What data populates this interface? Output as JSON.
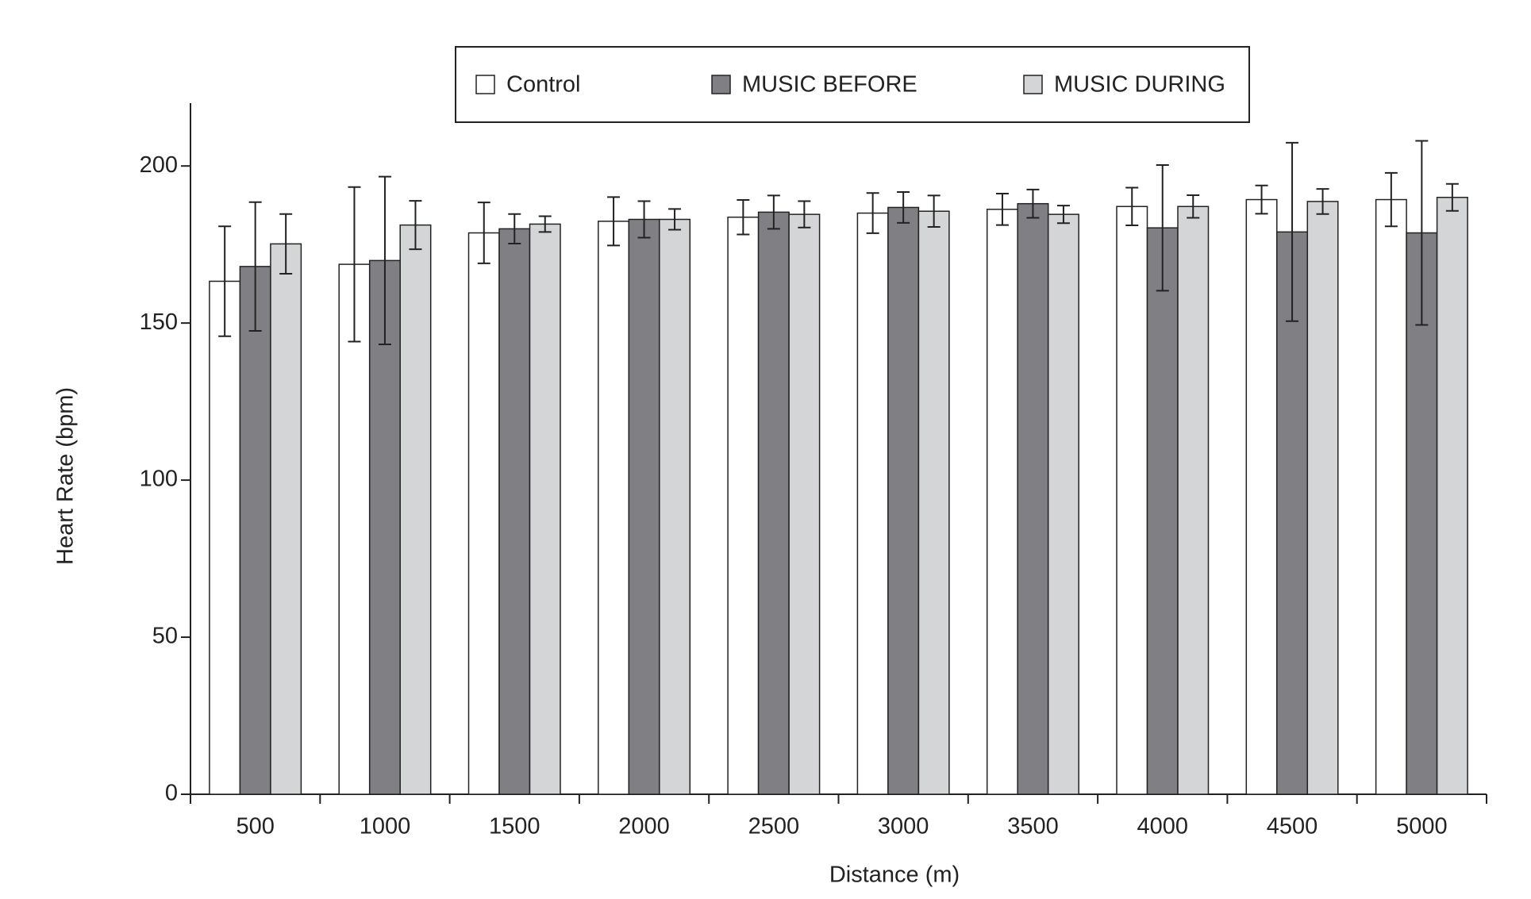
{
  "chart_data": {
    "type": "bar",
    "x_label": "Distance (m)",
    "y_label": "Heart Rate (bpm)",
    "categories": [
      "500",
      "1000",
      "1500",
      "2000",
      "2500",
      "3000",
      "3500",
      "4000",
      "4500",
      "5000"
    ],
    "series": [
      {
        "name": "Control",
        "color": "#ffffff",
        "values": [
          163.3,
          168.7,
          178.7,
          182.4,
          183.7,
          185,
          186.2,
          187.1,
          189.3,
          189.3
        ],
        "errors": [
          17.5,
          24.6,
          9.7,
          7.7,
          5.5,
          6.4,
          5,
          6,
          4.5,
          8.5
        ]
      },
      {
        "name": "MUSIC BEFORE",
        "color": "#808084",
        "values": [
          168,
          169.9,
          180,
          183,
          185.3,
          186.8,
          188,
          180.3,
          179,
          178.7
        ],
        "errors": [
          20.5,
          26.7,
          4.7,
          5.8,
          5.3,
          4.9,
          4.5,
          20,
          28.4,
          29.3
        ]
      },
      {
        "name": "MUSIC DURING",
        "color": "#d4d5d7",
        "values": [
          175.2,
          181.2,
          181.5,
          183,
          184.6,
          185.6,
          184.6,
          187.1,
          188.7,
          190
        ],
        "errors": [
          9.5,
          7.7,
          2.5,
          3.3,
          4.2,
          5,
          2.8,
          3.6,
          4,
          4.3
        ]
      }
    ],
    "ylim": [
      0,
      220
    ],
    "yticks": [
      0,
      50,
      100,
      150,
      200
    ],
    "grid": false,
    "legend": "top"
  }
}
